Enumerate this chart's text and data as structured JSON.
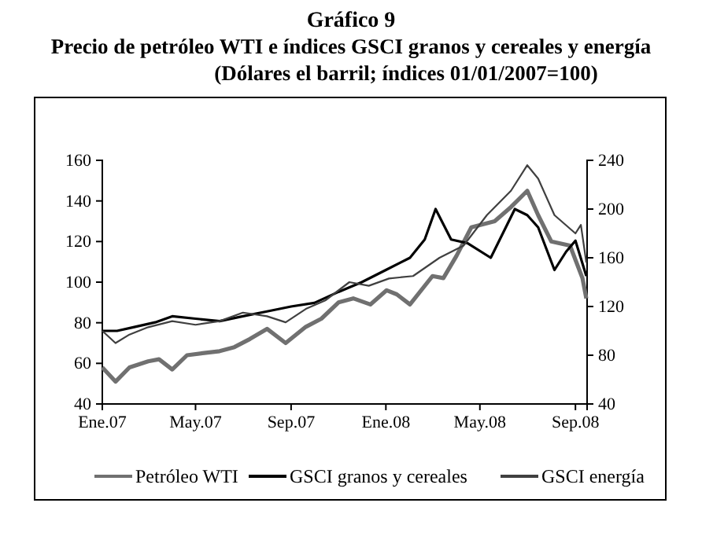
{
  "chart_data": {
    "type": "line",
    "title": "Gráfico 9",
    "subtitle": "Precio de petróleo WTI e índices GSCI granos y cereales y energía",
    "annotations": [
      "(Dólares el barril; índices 01/01/2007=100)"
    ],
    "xlim": [
      "2007-01-01",
      "2008-09-16"
    ],
    "xticks": [
      {
        "value": "2007-01-01",
        "label": "Ene.07"
      },
      {
        "value": "2007-05-01",
        "label": "May.07"
      },
      {
        "value": "2007-09-01",
        "label": "Sep.07"
      },
      {
        "value": "2008-01-01",
        "label": "Ene.08"
      },
      {
        "value": "2008-05-01",
        "label": "May.08"
      },
      {
        "value": "2008-09-01",
        "label": "Sep.08"
      }
    ],
    "ylim": [
      40,
      160
    ],
    "yticks": [
      40,
      60,
      80,
      100,
      120,
      140,
      160
    ],
    "y2lim": [
      40,
      240
    ],
    "y2ticks": [
      40,
      80,
      120,
      160,
      200,
      240
    ],
    "grid": false,
    "legend": "bottom",
    "marker": "none",
    "series": [
      {
        "name": "Petróleo WTI",
        "color": "#707070",
        "x": [
          "2007-01-01",
          "2007-01-18",
          "2007-02-05",
          "2007-03-01",
          "2007-03-15",
          "2007-04-01",
          "2007-04-20",
          "2007-05-10",
          "2007-06-01",
          "2007-06-20",
          "2007-07-10",
          "2007-08-01",
          "2007-08-25",
          "2007-09-20",
          "2007-10-10",
          "2007-11-01",
          "2007-11-20",
          "2007-12-12",
          "2008-01-02",
          "2008-01-15",
          "2008-02-01",
          "2008-03-01",
          "2008-03-15",
          "2008-04-01",
          "2008-04-20",
          "2008-05-20",
          "2008-06-10",
          "2008-07-01",
          "2008-07-15",
          "2008-08-01",
          "2008-08-25",
          "2008-09-10",
          "2008-09-15"
        ],
        "values": [
          58,
          51,
          58,
          61,
          62,
          57,
          64,
          65,
          66,
          68,
          72,
          77,
          70,
          78,
          82,
          90,
          92,
          89,
          96,
          94,
          89,
          103,
          102,
          113,
          127,
          130,
          137,
          145,
          133,
          120,
          118,
          102,
          92
        ]
      },
      {
        "name": "GSCI granos y cereales",
        "color": "#000000",
        "x": [
          "2007-01-01",
          "2007-01-20",
          "2007-02-10",
          "2007-03-10",
          "2007-04-01",
          "2007-05-01",
          "2007-06-01",
          "2007-07-01",
          "2007-08-01",
          "2007-09-01",
          "2007-10-01",
          "2007-11-01",
          "2007-12-01",
          "2008-01-01",
          "2008-02-01",
          "2008-02-20",
          "2008-03-05",
          "2008-03-25",
          "2008-04-15",
          "2008-05-15",
          "2008-06-15",
          "2008-07-01",
          "2008-07-15",
          "2008-08-05",
          "2008-08-20",
          "2008-09-01",
          "2008-09-15"
        ],
        "values": [
          100,
          100,
          103,
          107,
          112,
          110,
          108,
          112,
          116,
          120,
          123,
          132,
          140,
          150,
          160,
          175,
          200,
          175,
          172,
          160,
          200,
          195,
          185,
          150,
          165,
          174,
          145
        ],
        "axis": "y2"
      },
      {
        "name": "GSCI energía",
        "color": "#404040",
        "x": [
          "2007-01-01",
          "2007-01-18",
          "2007-02-05",
          "2007-03-01",
          "2007-04-01",
          "2007-05-01",
          "2007-06-01",
          "2007-07-01",
          "2007-08-01",
          "2007-08-25",
          "2007-09-20",
          "2007-10-15",
          "2007-11-15",
          "2007-12-10",
          "2008-01-05",
          "2008-02-05",
          "2008-03-10",
          "2008-04-10",
          "2008-05-10",
          "2008-06-10",
          "2008-07-01",
          "2008-07-15",
          "2008-08-05",
          "2008-09-01",
          "2008-09-08",
          "2008-09-15"
        ],
        "values": [
          100,
          90,
          97,
          103,
          108,
          105,
          108,
          115,
          112,
          107,
          118,
          125,
          140,
          137,
          143,
          145,
          160,
          170,
          195,
          215,
          236,
          225,
          195,
          180,
          187,
          156
        ],
        "axis": "y2"
      }
    ]
  }
}
